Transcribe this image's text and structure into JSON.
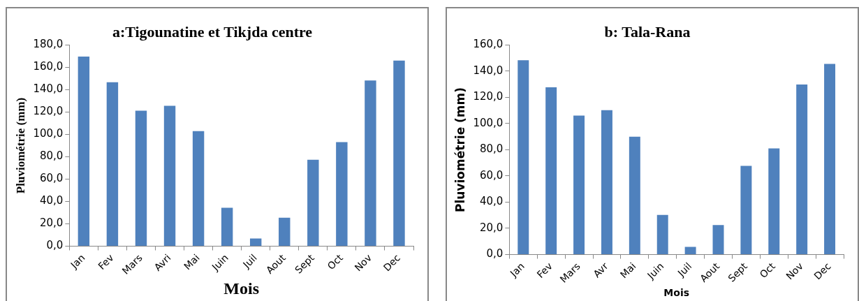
{
  "chart_data": [
    {
      "type": "bar",
      "title": "a:Tigounatine et Tikjda centre",
      "xlabel": "Mois",
      "ylabel": "Pluviométrie (mm)",
      "categories": [
        "Jan",
        "Fev",
        "Mars",
        "Avri",
        "Mai",
        "Juin",
        "Juil",
        "Aout",
        "Sept",
        "Oct",
        "Nov",
        "Dec"
      ],
      "values": [
        169.6,
        146.7,
        121.2,
        125.6,
        103.0,
        34.3,
        6.8,
        25.5,
        77.3,
        93.1,
        148.3,
        166.0
      ],
      "color": "#4f81bd",
      "ylim": [
        0,
        180
      ],
      "yticks": [
        {
          "value": 0,
          "label": "0,0"
        },
        {
          "value": 20,
          "label": "20,0"
        },
        {
          "value": 40,
          "label": "40,0"
        },
        {
          "value": 60,
          "label": "60,0"
        },
        {
          "value": 80,
          "label": "80,0"
        },
        {
          "value": 100,
          "label": "100,0"
        },
        {
          "value": 120,
          "label": "120,0"
        },
        {
          "value": 140,
          "label": "140,0"
        },
        {
          "value": 160,
          "label": "160,0"
        },
        {
          "value": 180,
          "label": "180,0"
        }
      ]
    },
    {
      "type": "bar",
      "title": "b: Tala-Rana",
      "xlabel": "Mois",
      "ylabel": "Pluviométrie (mm)",
      "categories": [
        "Jan",
        "Fev",
        "Mars",
        "Avr",
        "Mai",
        "Juin",
        "Juil",
        "Aout",
        "Sept",
        "Oct",
        "Nov",
        "Dec"
      ],
      "values": [
        148.4,
        127.7,
        106.1,
        110.2,
        90.0,
        30.2,
        5.9,
        22.5,
        67.7,
        81.1,
        129.8,
        145.5
      ],
      "color": "#4f81bd",
      "ylim": [
        0,
        160
      ],
      "yticks": [
        {
          "value": 0,
          "label": "0,0"
        },
        {
          "value": 20,
          "label": "20,0"
        },
        {
          "value": 40,
          "label": "40,0"
        },
        {
          "value": 60,
          "label": "60,0"
        },
        {
          "value": 80,
          "label": "80,0"
        },
        {
          "value": 100,
          "label": "100,0"
        },
        {
          "value": 120,
          "label": "120,0"
        },
        {
          "value": 140,
          "label": "140,0"
        },
        {
          "value": 160,
          "label": "160,0"
        }
      ]
    }
  ]
}
